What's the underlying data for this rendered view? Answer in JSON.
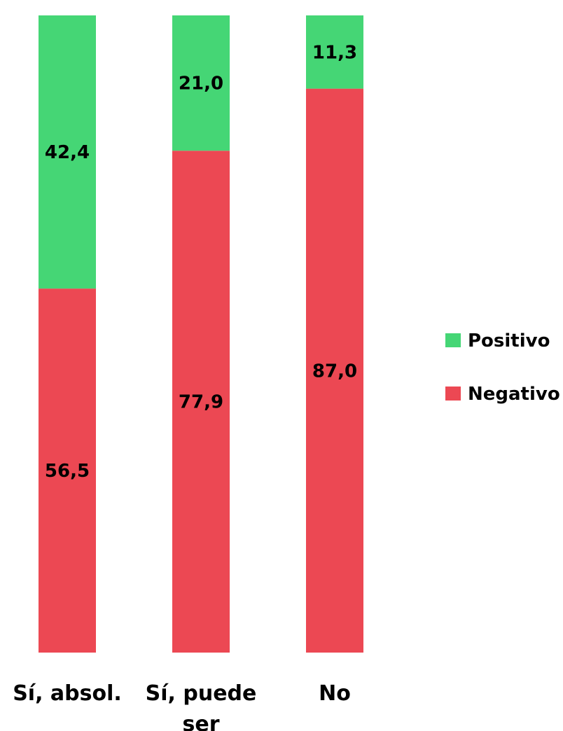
{
  "chart_data": {
    "type": "bar",
    "stacked": true,
    "categories": [
      "Sí, absol.",
      "Sí, puede ser",
      "No"
    ],
    "category_label_lines": [
      [
        "Sí, absol."
      ],
      [
        "Sí, puede",
        "ser"
      ],
      [
        "No"
      ]
    ],
    "series": [
      {
        "name": "Negativo",
        "color": "#ec4853",
        "values": [
          56.5,
          77.9,
          87.0
        ],
        "labels": [
          "56,5",
          "77,9",
          "87,0"
        ]
      },
      {
        "name": "Positivo",
        "color": "#45d675",
        "values": [
          42.4,
          21.0,
          11.3
        ],
        "labels": [
          "42,4",
          "21,0",
          "11,3"
        ]
      }
    ],
    "legend_order": [
      "Positivo",
      "Negativo"
    ],
    "legend_position": "right",
    "ylim": [
      0,
      100
    ],
    "grid": false,
    "title": "",
    "xlabel": "",
    "ylabel": ""
  }
}
